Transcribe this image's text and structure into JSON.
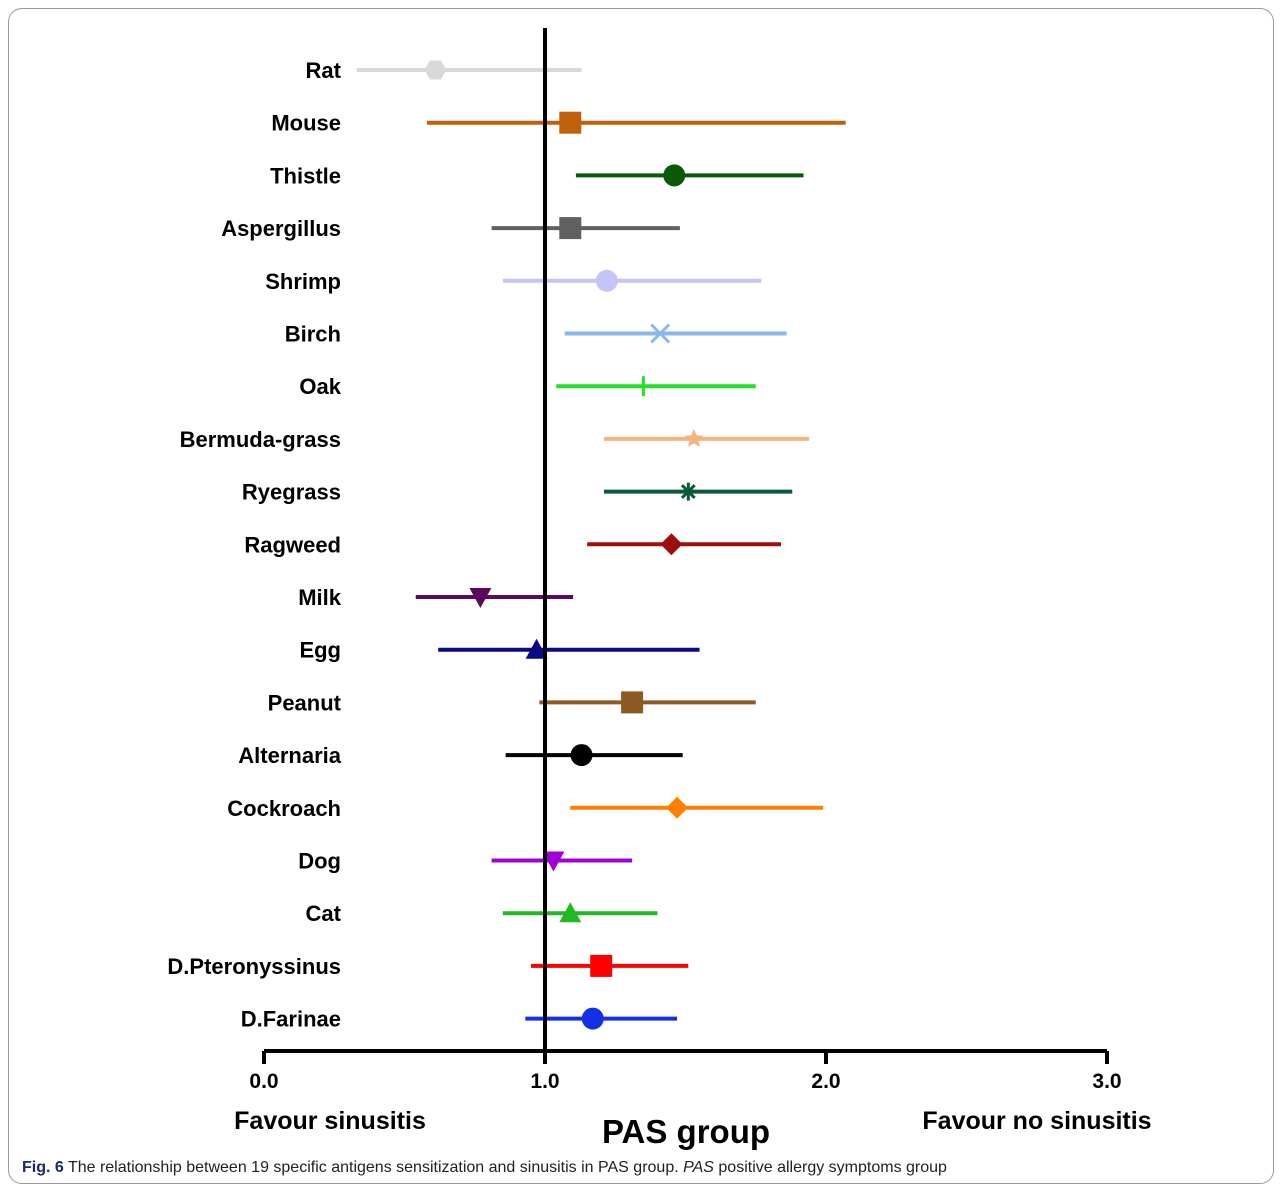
{
  "chart_data": {
    "type": "forest",
    "xlabel": "PAS group",
    "left_annotation": "Favour sinusitis",
    "right_annotation": "Favour no sinusitis",
    "xlim": [
      0.0,
      3.0
    ],
    "xticks": [
      "0.0",
      "1.0",
      "2.0",
      "3.0"
    ],
    "reference_line": 1.0,
    "rows": [
      {
        "label": "Rat",
        "estimate": 0.61,
        "lower": 0.33,
        "upper": 1.13,
        "color": "#d9d9d9",
        "marker": "hexagon"
      },
      {
        "label": "Mouse",
        "estimate": 1.09,
        "lower": 0.58,
        "upper": 2.07,
        "color": "#c0600a",
        "marker": "square"
      },
      {
        "label": "Thistle",
        "estimate": 1.46,
        "lower": 1.11,
        "upper": 1.92,
        "color": "#0a5a0a",
        "marker": "circle"
      },
      {
        "label": "Aspergillus",
        "estimate": 1.09,
        "lower": 0.81,
        "upper": 1.48,
        "color": "#606060",
        "marker": "square"
      },
      {
        "label": "Shrimp",
        "estimate": 1.22,
        "lower": 0.85,
        "upper": 1.77,
        "color": "#c4c4f8",
        "marker": "circle"
      },
      {
        "label": "Birch",
        "estimate": 1.41,
        "lower": 1.07,
        "upper": 1.86,
        "color": "#8ab8ee",
        "marker": "x"
      },
      {
        "label": "Oak",
        "estimate": 1.35,
        "lower": 1.04,
        "upper": 1.75,
        "color": "#22e022",
        "marker": "plus"
      },
      {
        "label": "Bermuda-grass",
        "estimate": 1.53,
        "lower": 1.21,
        "upper": 1.94,
        "color": "#f4b47e",
        "marker": "star"
      },
      {
        "label": "Ryegrass",
        "estimate": 1.51,
        "lower": 1.21,
        "upper": 1.88,
        "color": "#0a5a3a",
        "marker": "asterisk"
      },
      {
        "label": "Ragweed",
        "estimate": 1.45,
        "lower": 1.15,
        "upper": 1.84,
        "color": "#a00d0d",
        "marker": "diamond"
      },
      {
        "label": "Milk",
        "estimate": 0.77,
        "lower": 0.54,
        "upper": 1.1,
        "color": "#5a0a5a",
        "marker": "triangle-down"
      },
      {
        "label": "Egg",
        "estimate": 0.97,
        "lower": 0.62,
        "upper": 1.55,
        "color": "#0a0a82",
        "marker": "triangle-up"
      },
      {
        "label": "Peanut",
        "estimate": 1.31,
        "lower": 0.98,
        "upper": 1.75,
        "color": "#8c5a22",
        "marker": "square"
      },
      {
        "label": "Alternaria",
        "estimate": 1.13,
        "lower": 0.86,
        "upper": 1.49,
        "color": "#000000",
        "marker": "circle"
      },
      {
        "label": "Cockroach",
        "estimate": 1.47,
        "lower": 1.09,
        "upper": 1.99,
        "color": "#ff8000",
        "marker": "diamond"
      },
      {
        "label": "Dog",
        "estimate": 1.03,
        "lower": 0.81,
        "upper": 1.31,
        "color": "#a000dc",
        "marker": "triangle-down"
      },
      {
        "label": "Cat",
        "estimate": 1.09,
        "lower": 0.85,
        "upper": 1.4,
        "color": "#22b822",
        "marker": "triangle-up"
      },
      {
        "label": "D.Pteronyssinus",
        "estimate": 1.2,
        "lower": 0.95,
        "upper": 1.51,
        "color": "#ff0000",
        "marker": "square"
      },
      {
        "label": "D.Farinae",
        "estimate": 1.17,
        "lower": 0.93,
        "upper": 1.47,
        "color": "#1430e6",
        "marker": "circle"
      }
    ]
  },
  "caption": {
    "fig_label": "Fig. 6",
    "text_1": "The relationship between 19 specific antigens sensitization and sinusitis in PAS group.",
    "abbr": "PAS",
    "text_2": "positive allergy symptoms group"
  }
}
